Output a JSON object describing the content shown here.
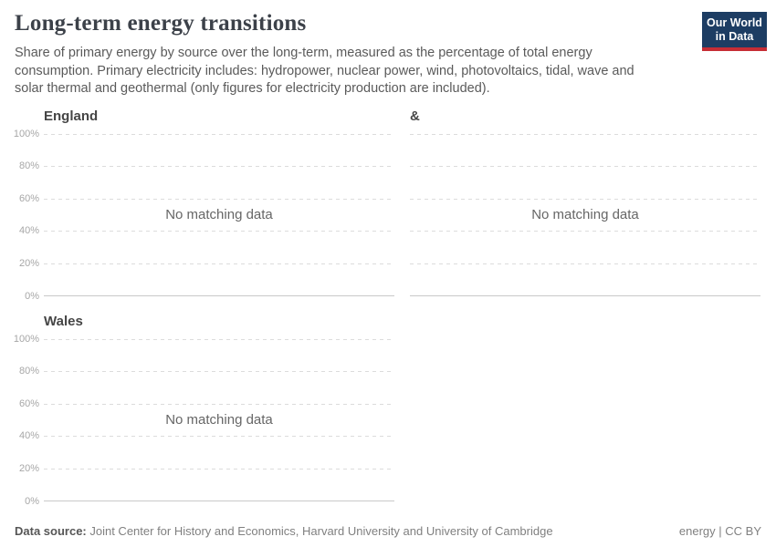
{
  "header": {
    "title": "Long-term energy transitions",
    "subtitle": "Share of primary energy by source over the long-term, measured as the percentage of total energy consumption. Primary electricity includes: hydropower, nuclear power, wind, photovoltaics, tidal, wave and solar thermal and geothermal (only figures for electricity production are included).",
    "logo": {
      "line1": "Our World",
      "line2": "in Data"
    }
  },
  "axis": {
    "ticks": [
      "100%",
      "80%",
      "60%",
      "40%",
      "20%",
      "0%"
    ]
  },
  "chart_data": [
    {
      "type": "area",
      "facet": "England",
      "no_data_message": "No matching data",
      "series": [],
      "ylabel": "",
      "ylim": [
        0,
        100
      ],
      "ytick_values": [
        0,
        20,
        40,
        60,
        80,
        100
      ],
      "grid": true,
      "legend_position": "none"
    },
    {
      "type": "area",
      "facet": "&",
      "no_data_message": "No matching data",
      "series": [],
      "ylabel": "",
      "ylim": [
        0,
        100
      ],
      "ytick_values": [
        0,
        20,
        40,
        60,
        80,
        100
      ],
      "grid": true,
      "legend_position": "none"
    },
    {
      "type": "area",
      "facet": "Wales",
      "no_data_message": "No matching data",
      "series": [],
      "ylabel": "",
      "ylim": [
        0,
        100
      ],
      "ytick_values": [
        0,
        20,
        40,
        60,
        80,
        100
      ],
      "grid": true,
      "legend_position": "none"
    }
  ],
  "footer": {
    "source_label": "Data source:",
    "source_text": " Joint Center for History and Economics, Harvard University and University of Cambridge",
    "license_text": "energy | CC BY"
  },
  "colors": {
    "logo_bg": "#1d3d63",
    "logo_accent": "#c62d35",
    "gridline": "#dcdcdc",
    "zero_line": "#c9c9c9",
    "tick_label": "#a7a7a7",
    "no_data_text": "#666666"
  }
}
